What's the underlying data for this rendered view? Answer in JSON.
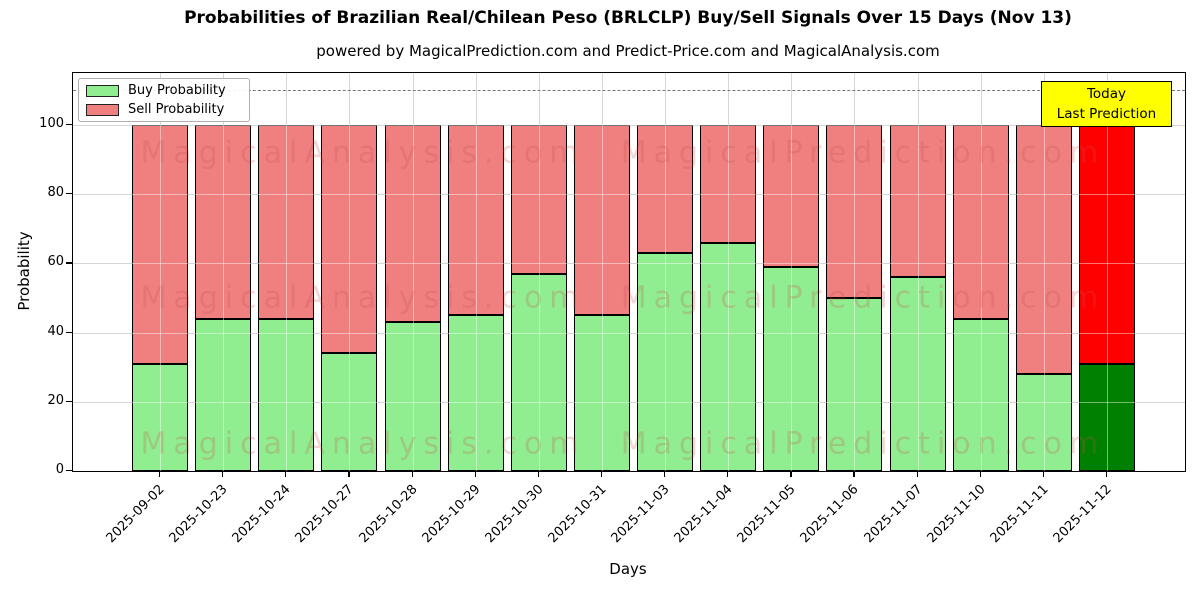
{
  "title": "Probabilities of Brazilian Real/Chilean Peso (BRLCLP) Buy/Sell Signals Over 15 Days (Nov 13)",
  "subtitle": "powered by MagicalPrediction.com and Predict-Price.com and MagicalAnalysis.com",
  "axes": {
    "xlabel": "Days",
    "ylabel": "Probability"
  },
  "legend": {
    "items": [
      {
        "label": "Buy Probability",
        "color": "#90ee90"
      },
      {
        "label": "Sell Probability",
        "color": "#f08080"
      }
    ]
  },
  "annotation": {
    "lines": [
      "Today",
      "Last Prediction"
    ],
    "bg": "#ffff00"
  },
  "watermark": {
    "left_text": "MagicalAnalysis.com",
    "right_text": "MagicalPrediction.com",
    "color": "rgba(200,80,80,0.24)"
  },
  "chart_data": {
    "type": "bar",
    "stacked": true,
    "categories": [
      "2025-09-02",
      "2025-10-23",
      "2025-10-24",
      "2025-10-27",
      "2025-10-28",
      "2025-10-29",
      "2025-10-30",
      "2025-10-31",
      "2025-11-03",
      "2025-11-04",
      "2025-11-05",
      "2025-11-06",
      "2025-11-07",
      "2025-11-10",
      "2025-11-11",
      "2025-11-12"
    ],
    "series": [
      {
        "name": "Buy Probability",
        "color": "#90ee90",
        "values": [
          31,
          44,
          44,
          34,
          43,
          45,
          57,
          45,
          63,
          66,
          59,
          50,
          56,
          44,
          28,
          31
        ]
      },
      {
        "name": "Sell Probability",
        "color": "#f08080",
        "values": [
          69,
          56,
          56,
          66,
          57,
          55,
          43,
          55,
          37,
          34,
          41,
          50,
          44,
          56,
          72,
          69
        ]
      }
    ],
    "highlight_last_bar": {
      "buy_color": "#008000",
      "sell_color": "#ff0000",
      "note": "Today / Last Prediction"
    },
    "xlabel": "Days",
    "ylabel": "Probability",
    "yticks": [
      0,
      20,
      40,
      60,
      80,
      100
    ],
    "ylim": [
      0,
      115
    ],
    "dashed_line_y": 110,
    "grid": true,
    "legend_position": "upper left"
  }
}
